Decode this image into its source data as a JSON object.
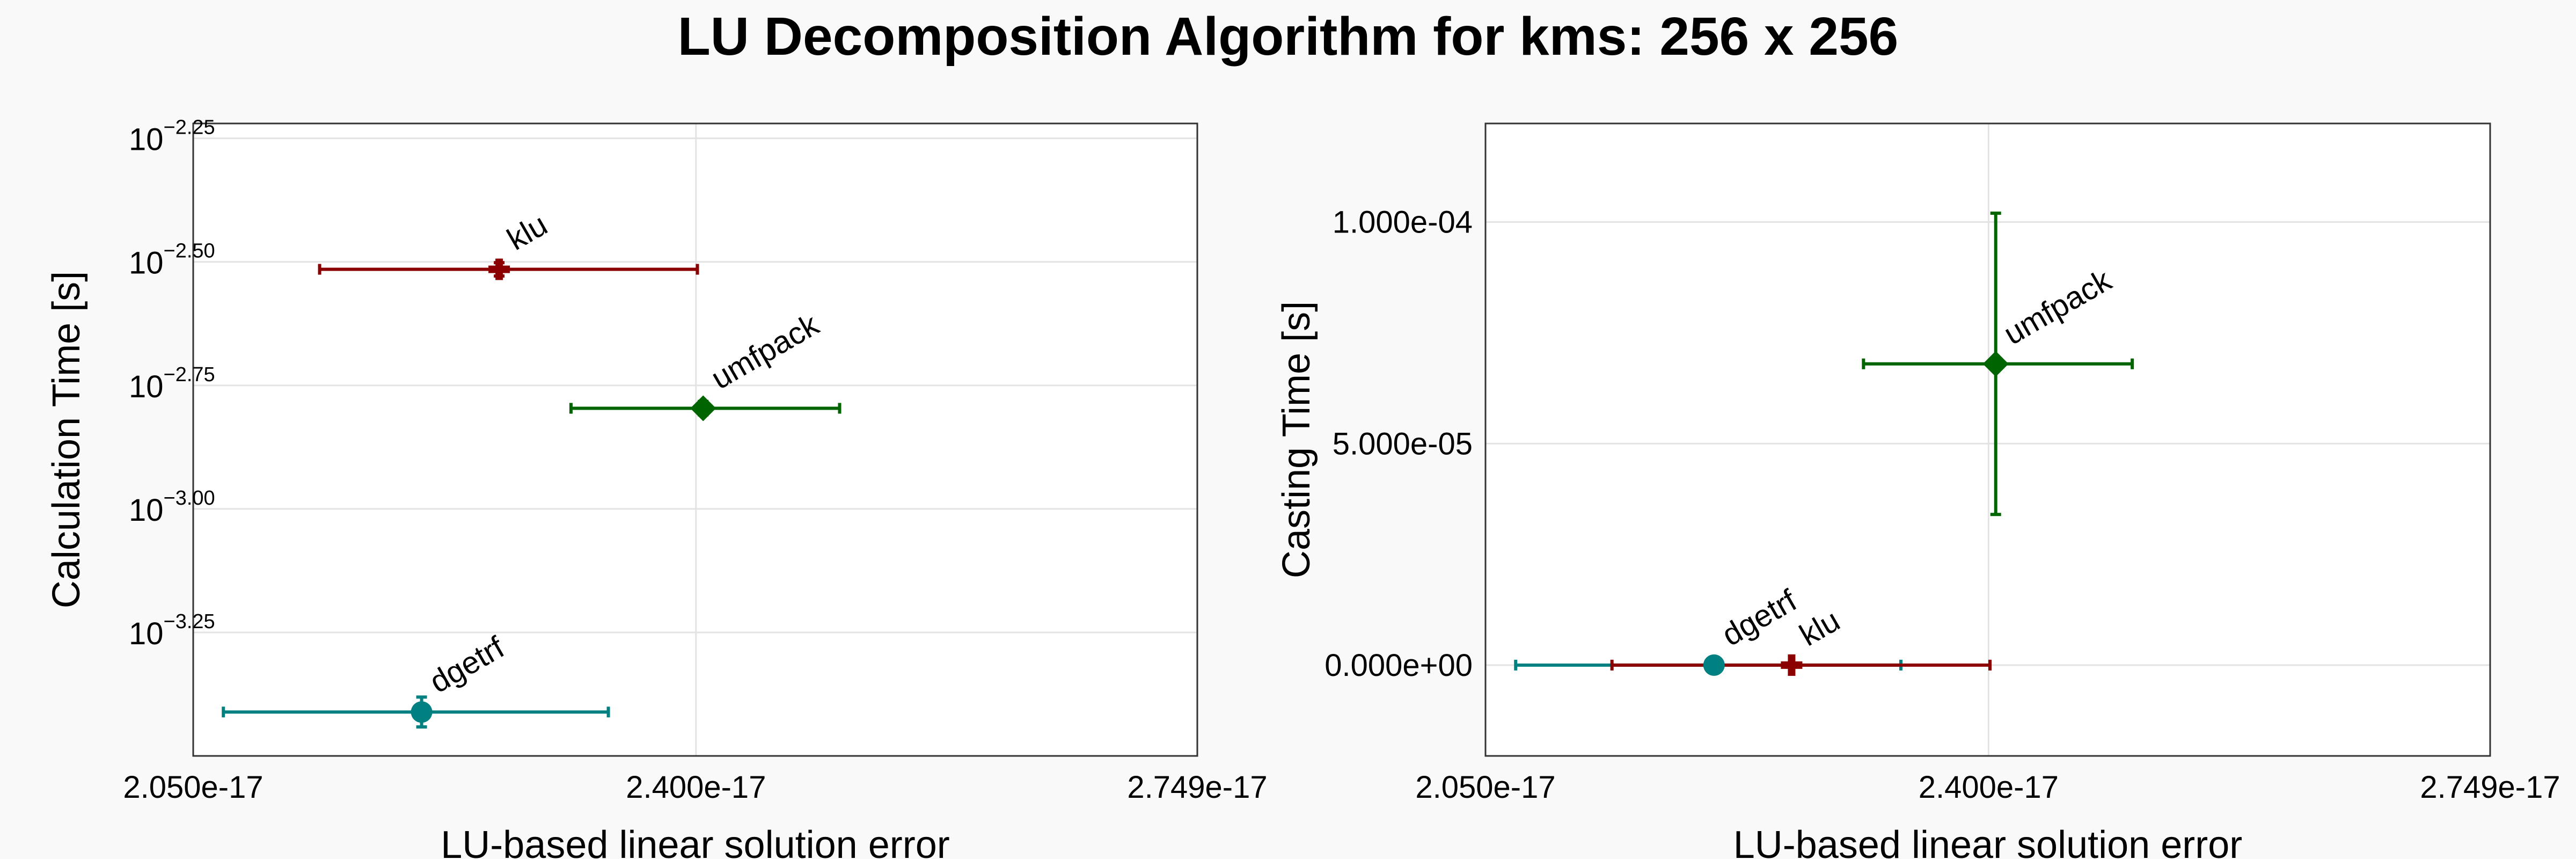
{
  "figure_title": "LU Decomposition Algorithm for kms: 256 x 256",
  "chart_data": [
    {
      "type": "scatter",
      "xlabel": "LU-based linear solution error",
      "ylabel": "Calculation Time [s]",
      "xlim": [
        2.05e-17,
        2.749e-17
      ],
      "xticks": [
        2.05e-17,
        2.4e-17,
        2.749e-17
      ],
      "xtick_labels": [
        "2.050e-17",
        "2.400e-17",
        "2.749e-17"
      ],
      "yscale": "log10",
      "ylim_log10": [
        -3.5,
        -2.22
      ],
      "yticks": [
        {
          "value": 0.005623,
          "base": "10",
          "exponent": "−2.25"
        },
        {
          "value": 0.003162,
          "base": "10",
          "exponent": "−2.50"
        },
        {
          "value": 0.001778,
          "base": "10",
          "exponent": "−2.75"
        },
        {
          "value": 0.001,
          "base": "10",
          "exponent": "−3.00"
        },
        {
          "value": 0.0005623,
          "base": "10",
          "exponent": "−3.25"
        }
      ],
      "grid": true,
      "points": [
        {
          "label": "klu",
          "marker": "cross",
          "color": "#8b0000",
          "x": 2.263e-17,
          "y": 0.003054,
          "xerr": [
            2.138e-17,
            2.401e-17
          ],
          "yerr": [
            0.00296,
            0.00315
          ]
        },
        {
          "label": "umfpack",
          "marker": "diamond",
          "color": "#006400",
          "x": 2.405e-17,
          "y": 0.001598,
          "xerr": [
            2.313e-17,
            2.5e-17
          ],
          "yerr": [
            0.00155,
            0.00165
          ]
        },
        {
          "label": "dgetrf",
          "marker": "circle",
          "color": "#008080",
          "x": 2.209e-17,
          "y": 0.000388,
          "xerr": [
            2.071e-17,
            2.339e-17
          ],
          "yerr": [
            0.000362,
            0.000416
          ]
        }
      ]
    },
    {
      "type": "scatter",
      "xlabel": "LU-based linear solution error",
      "ylabel": "Casting Time [s]",
      "xlim": [
        2.05e-17,
        2.749e-17
      ],
      "xticks": [
        2.05e-17,
        2.4e-17,
        2.749e-17
      ],
      "xtick_labels": [
        "2.050e-17",
        "2.400e-17",
        "2.749e-17"
      ],
      "yscale": "linear",
      "ylim": [
        -2.05e-05,
        0.00012226
      ],
      "yticks": [
        0,
        5e-05,
        0.0001
      ],
      "ytick_labels": [
        "0.000e+00",
        "5.000e-05",
        "1.000e-04"
      ],
      "grid": true,
      "points": [
        {
          "label": "umfpack",
          "marker": "diamond",
          "color": "#006400",
          "x": 2.405e-17,
          "y": 6.8e-05,
          "xerr": [
            2.313e-17,
            2.5e-17
          ],
          "yerr": [
            3.4e-05,
            0.000102
          ]
        },
        {
          "label": "dgetrf",
          "marker": "circle",
          "color": "#008080",
          "x": 2.209e-17,
          "y": 0.0,
          "xerr": [
            2.071e-17,
            2.339e-17
          ],
          "yerr": [
            0.0,
            0.0
          ]
        },
        {
          "label": "klu",
          "marker": "cross",
          "color": "#8b0000",
          "x": 2.263e-17,
          "y": 0.0,
          "xerr": [
            2.138e-17,
            2.401e-17
          ],
          "yerr": [
            0.0,
            0.0
          ]
        }
      ]
    }
  ]
}
